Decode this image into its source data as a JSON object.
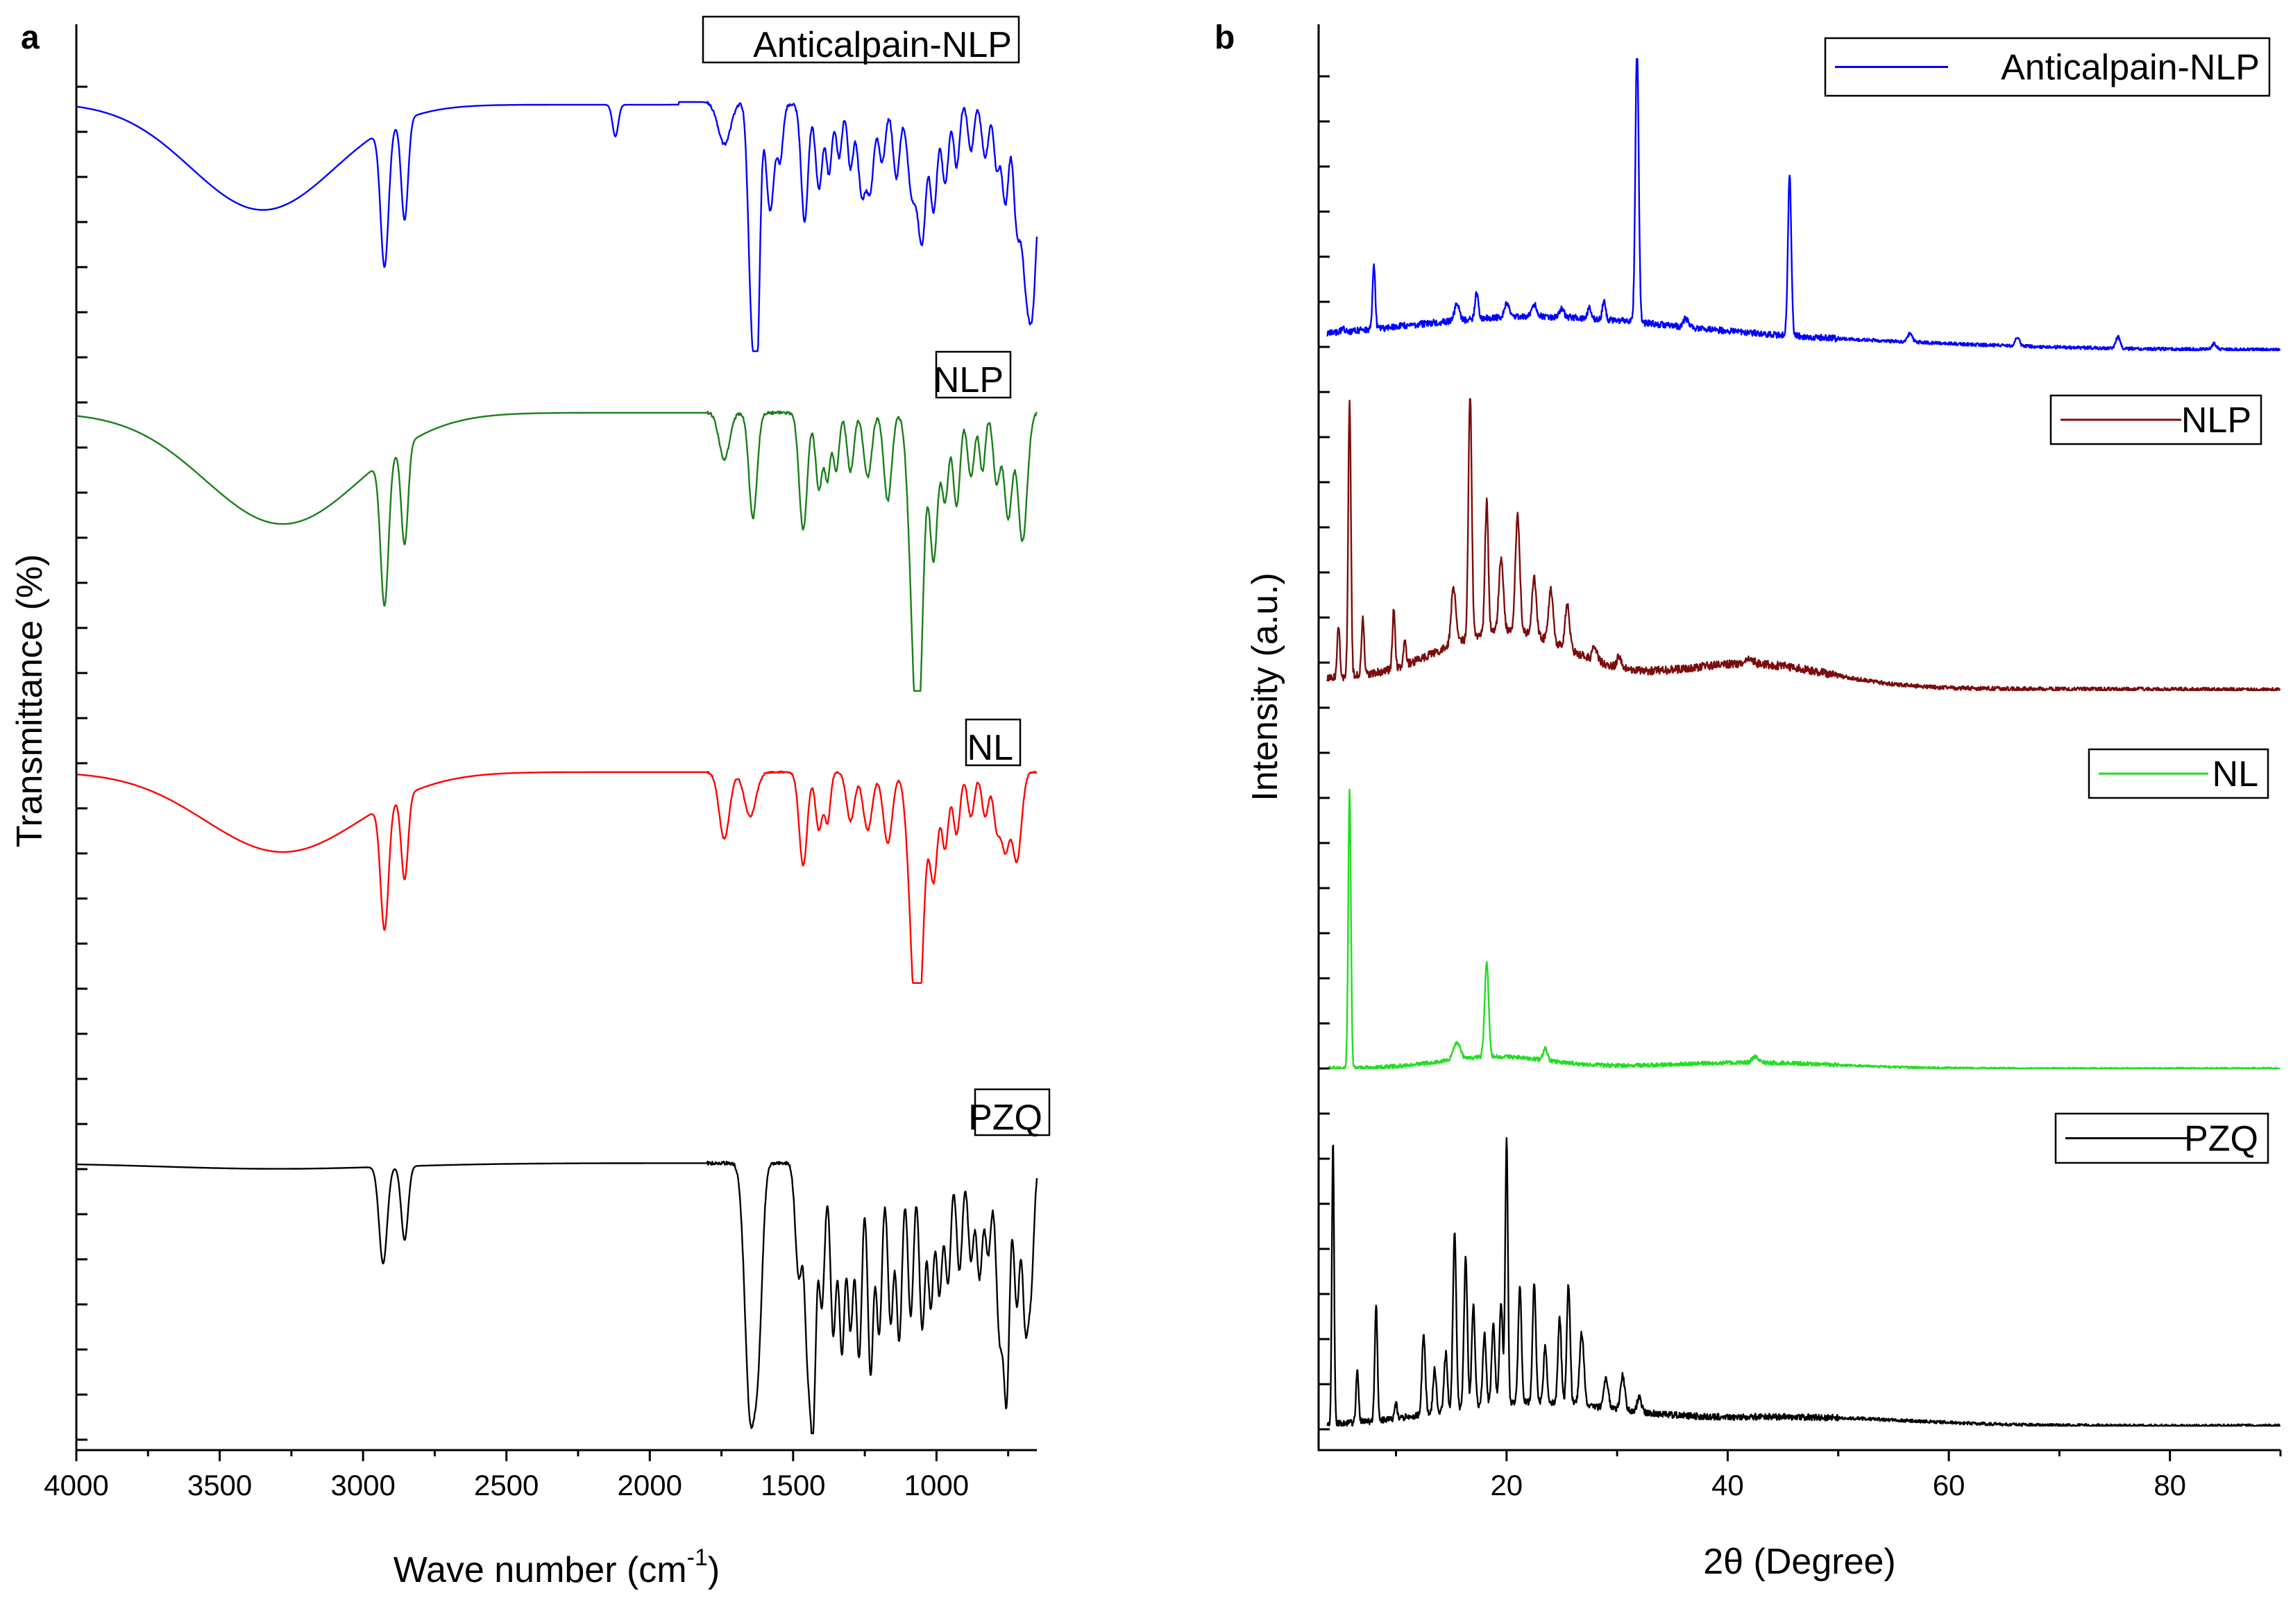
{
  "chart_data": [
    {
      "type": "line",
      "panel_label": "a",
      "xlabel": "Wave number (cm",
      "xlabel_superscript": "-1",
      "xlabel_suffix": ")",
      "ylabel": "Transmittance (%)",
      "xlim": [
        4000,
        650
      ],
      "x_reversed": true,
      "x_ticks": [
        4000,
        3500,
        3000,
        2500,
        2000,
        1500,
        1000
      ],
      "x_tick_labels": [
        "4000",
        "3500",
        "3000",
        "2500",
        "2000",
        "1500",
        "1000"
      ],
      "y_tick_labels_shown": false,
      "legend_style": "text-box-per-trace",
      "series": [
        {
          "name": "Anticalpain-NLP",
          "color": "#0000ff",
          "baseline": 0.04,
          "depth_scale": 0.19,
          "broad": [
            [
              3350,
              250,
              0.4
            ],
            [
              2200,
              2000,
              0.02
            ]
          ],
          "peaks": [
            [
              2925,
              14,
              0.52
            ],
            [
              2855,
              12,
              0.38
            ],
            [
              2120,
              10,
              0.12
            ],
            [
              1740,
              22,
              0.16
            ],
            [
              1645,
              12,
              0.74
            ],
            [
              1625,
              10,
              0.82
            ],
            [
              1580,
              14,
              0.4
            ],
            [
              1545,
              10,
              0.2
            ],
            [
              1460,
              12,
              0.44
            ],
            [
              1410,
              12,
              0.32
            ],
            [
              1375,
              10,
              0.26
            ],
            [
              1340,
              10,
              0.2
            ],
            [
              1300,
              10,
              0.24
            ],
            [
              1260,
              14,
              0.34
            ],
            [
              1230,
              12,
              0.3
            ],
            [
              1190,
              12,
              0.22
            ],
            [
              1140,
              12,
              0.28
            ],
            [
              1085,
              16,
              0.34
            ],
            [
              1050,
              14,
              0.5
            ],
            [
              1010,
              12,
              0.4
            ],
            [
              970,
              12,
              0.3
            ],
            [
              930,
              10,
              0.24
            ],
            [
              880,
              10,
              0.18
            ],
            [
              830,
              12,
              0.2
            ],
            [
              790,
              10,
              0.24
            ],
            [
              760,
              12,
              0.38
            ],
            [
              720,
              12,
              0.44
            ],
            [
              690,
              14,
              0.5
            ],
            [
              665,
              14,
              0.56
            ]
          ],
          "noise": 0.006
        },
        {
          "name": "NLP",
          "color": "#1a7f1a",
          "baseline": 0.04,
          "depth_scale": 0.19,
          "broad": [
            [
              3280,
              270,
              0.38
            ]
          ],
          "peaks": [
            [
              2925,
              14,
              0.5
            ],
            [
              2855,
              12,
              0.34
            ],
            [
              1740,
              18,
              0.16
            ],
            [
              1640,
              14,
              0.36
            ],
            [
              1465,
              14,
              0.4
            ],
            [
              1410,
              12,
              0.26
            ],
            [
              1380,
              10,
              0.22
            ],
            [
              1350,
              10,
              0.2
            ],
            [
              1300,
              12,
              0.2
            ],
            [
              1240,
              14,
              0.22
            ],
            [
              1170,
              14,
              0.3
            ],
            [
              1080,
              18,
              0.58
            ],
            [
              1060,
              16,
              0.74
            ],
            [
              1010,
              14,
              0.5
            ],
            [
              970,
              12,
              0.3
            ],
            [
              930,
              12,
              0.32
            ],
            [
              880,
              12,
              0.22
            ],
            [
              840,
              10,
              0.2
            ],
            [
              790,
              12,
              0.24
            ],
            [
              750,
              14,
              0.36
            ],
            [
              700,
              16,
              0.44
            ]
          ],
          "noise": 0.005
        },
        {
          "name": "NL",
          "color": "#ff0000",
          "baseline": 0.04,
          "depth_scale": 0.19,
          "broad": [
            [
              3280,
              270,
              0.36
            ]
          ],
          "peaks": [
            [
              2925,
              14,
              0.56
            ],
            [
              2855,
              12,
              0.38
            ],
            [
              1740,
              18,
              0.3
            ],
            [
              1650,
              20,
              0.2
            ],
            [
              1465,
              14,
              0.42
            ],
            [
              1410,
              12,
              0.26
            ],
            [
              1380,
              10,
              0.22
            ],
            [
              1300,
              14,
              0.22
            ],
            [
              1240,
              16,
              0.26
            ],
            [
              1170,
              16,
              0.32
            ],
            [
              1080,
              20,
              0.62
            ],
            [
              1060,
              18,
              0.78
            ],
            [
              1010,
              14,
              0.48
            ],
            [
              970,
              12,
              0.34
            ],
            [
              930,
              12,
              0.28
            ],
            [
              880,
              12,
              0.2
            ],
            [
              830,
              12,
              0.2
            ],
            [
              790,
              12,
              0.24
            ],
            [
              760,
              14,
              0.34
            ],
            [
              720,
              16,
              0.4
            ]
          ],
          "noise": 0.004
        },
        {
          "name": "PZQ",
          "color": "#000000",
          "baseline": 0.04,
          "depth_scale": 0.19,
          "broad": [
            [
              3300,
              400,
              0.02
            ]
          ],
          "peaks": [
            [
              2930,
              14,
              0.34
            ],
            [
              2855,
              12,
              0.26
            ],
            [
              1650,
              18,
              0.86
            ],
            [
              1620,
              14,
              0.5
            ],
            [
              1480,
              12,
              0.4
            ],
            [
              1450,
              10,
              0.6
            ],
            [
              1430,
              10,
              0.86
            ],
            [
              1400,
              10,
              0.5
            ],
            [
              1360,
              10,
              0.6
            ],
            [
              1330,
              10,
              0.66
            ],
            [
              1300,
              10,
              0.58
            ],
            [
              1270,
              10,
              0.68
            ],
            [
              1230,
              10,
              0.74
            ],
            [
              1200,
              10,
              0.6
            ],
            [
              1160,
              10,
              0.56
            ],
            [
              1130,
              10,
              0.62
            ],
            [
              1090,
              10,
              0.54
            ],
            [
              1050,
              10,
              0.58
            ],
            [
              1020,
              10,
              0.5
            ],
            [
              990,
              10,
              0.46
            ],
            [
              960,
              10,
              0.42
            ],
            [
              920,
              10,
              0.38
            ],
            [
              880,
              10,
              0.34
            ],
            [
              850,
              10,
              0.4
            ],
            [
              820,
              10,
              0.32
            ],
            [
              780,
              12,
              0.6
            ],
            [
              755,
              10,
              0.78
            ],
            [
              720,
              10,
              0.5
            ],
            [
              690,
              10,
              0.54
            ],
            [
              670,
              10,
              0.4
            ]
          ],
          "noise": 0.006
        }
      ]
    },
    {
      "type": "line",
      "panel_label": "b",
      "xlabel": "2θ (Degree)",
      "ylabel": "Intensity (a.u.)",
      "xlim": [
        3,
        90
      ],
      "x_ticks": [
        20,
        40,
        60,
        80
      ],
      "x_tick_labels": [
        "20",
        "40",
        "60",
        "80"
      ],
      "y_tick_labels_shown": false,
      "legend_style": "line-sample-box",
      "series": [
        {
          "name": "Anticalpain-NLP",
          "color": "#0000ff",
          "amorphous": [
            [
              22,
              12,
              0.09
            ],
            [
              45,
              15,
              0.03
            ]
          ],
          "tail": 0.03,
          "peaks": [
            [
              5.2,
              0.12,
              0.02
            ],
            [
              8.0,
              0.12,
              0.22
            ],
            [
              15.5,
              0.2,
              0.06
            ],
            [
              17.3,
              0.15,
              0.09
            ],
            [
              20.0,
              0.2,
              0.05
            ],
            [
              22.5,
              0.25,
              0.04
            ],
            [
              25.0,
              0.2,
              0.03
            ],
            [
              27.5,
              0.15,
              0.04
            ],
            [
              28.8,
              0.15,
              0.06
            ],
            [
              31.8,
              0.15,
              0.95
            ],
            [
              36.2,
              0.2,
              0.03
            ],
            [
              45.6,
              0.15,
              0.55
            ],
            [
              56.5,
              0.2,
              0.03
            ],
            [
              66.2,
              0.2,
              0.03
            ],
            [
              75.3,
              0.2,
              0.04
            ],
            [
              84.0,
              0.2,
              0.02
            ]
          ],
          "noise": 0.008
        },
        {
          "name": "NLP",
          "color": "#7b0c0c",
          "amorphous": [
            [
              20,
              6,
              0.18
            ],
            [
              42,
              7,
              0.08
            ]
          ],
          "tail": 0.04,
          "peaks": [
            [
              4.8,
              0.12,
              0.18
            ],
            [
              5.8,
              0.12,
              0.95
            ],
            [
              7.0,
              0.12,
              0.2
            ],
            [
              9.8,
              0.12,
              0.2
            ],
            [
              10.8,
              0.12,
              0.08
            ],
            [
              15.2,
              0.2,
              0.2
            ],
            [
              16.7,
              0.15,
              0.85
            ],
            [
              18.2,
              0.15,
              0.45
            ],
            [
              19.5,
              0.2,
              0.25
            ],
            [
              21.0,
              0.2,
              0.4
            ],
            [
              22.5,
              0.2,
              0.2
            ],
            [
              24.0,
              0.2,
              0.18
            ],
            [
              25.5,
              0.2,
              0.15
            ],
            [
              28.0,
              0.2,
              0.05
            ],
            [
              30.2,
              0.2,
              0.04
            ],
            [
              42.0,
              0.3,
              0.02
            ]
          ],
          "noise": 0.01
        },
        {
          "name": "NL",
          "color": "#22dd22",
          "amorphous": [
            [
              19,
              5,
              0.04
            ],
            [
              42,
              8,
              0.02
            ]
          ],
          "tail": 0.0,
          "peaks": [
            [
              5.8,
              0.12,
              0.95
            ],
            [
              15.5,
              0.3,
              0.06
            ],
            [
              18.2,
              0.18,
              0.32
            ],
            [
              23.5,
              0.2,
              0.04
            ],
            [
              42.5,
              0.3,
              0.02
            ]
          ],
          "noise": 0.005
        },
        {
          "name": "PZQ",
          "color": "#000000",
          "amorphous": [
            [
              22,
              8,
              0.08
            ],
            [
              46,
              10,
              0.03
            ]
          ],
          "tail": 0.0,
          "peaks": [
            [
              4.3,
              0.1,
              0.98
            ],
            [
              6.5,
              0.12,
              0.18
            ],
            [
              8.2,
              0.12,
              0.4
            ],
            [
              10.0,
              0.12,
              0.05
            ],
            [
              12.5,
              0.15,
              0.28
            ],
            [
              13.5,
              0.15,
              0.15
            ],
            [
              14.5,
              0.15,
              0.2
            ],
            [
              15.3,
              0.15,
              0.62
            ],
            [
              16.3,
              0.15,
              0.52
            ],
            [
              17.0,
              0.15,
              0.35
            ],
            [
              18.0,
              0.15,
              0.25
            ],
            [
              18.8,
              0.15,
              0.28
            ],
            [
              19.5,
              0.15,
              0.35
            ],
            [
              20.0,
              0.12,
              0.92
            ],
            [
              21.2,
              0.15,
              0.4
            ],
            [
              22.5,
              0.15,
              0.42
            ],
            [
              23.5,
              0.15,
              0.2
            ],
            [
              24.8,
              0.15,
              0.3
            ],
            [
              25.6,
              0.15,
              0.42
            ],
            [
              26.8,
              0.2,
              0.25
            ],
            [
              29.0,
              0.2,
              0.1
            ],
            [
              30.5,
              0.2,
              0.12
            ],
            [
              32.0,
              0.2,
              0.05
            ]
          ],
          "noise": 0.008
        }
      ]
    }
  ]
}
